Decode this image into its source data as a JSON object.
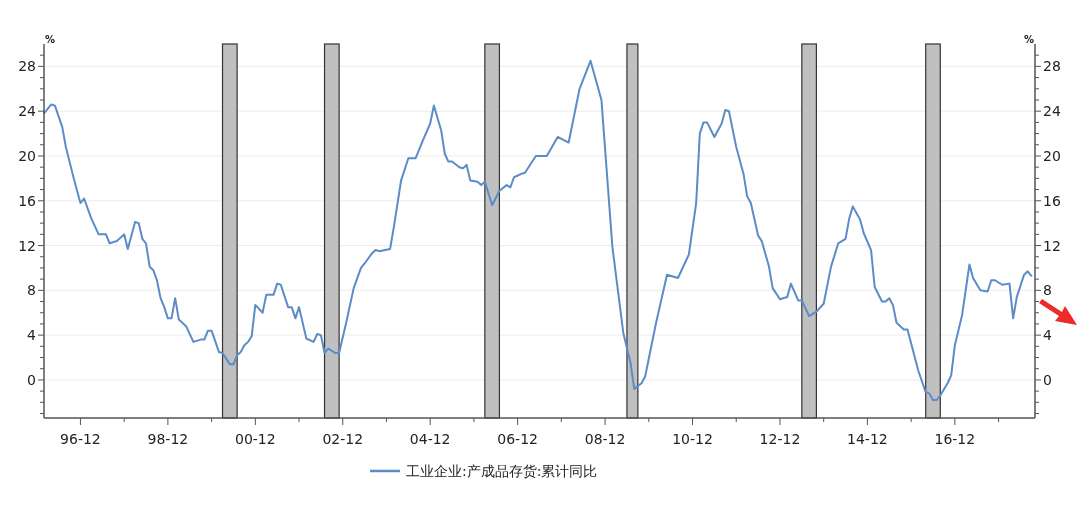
{
  "chart_data": {
    "type": "line",
    "x": [
      "1996-02",
      "1996-04",
      "1996-05",
      "1996-07",
      "1996-08",
      "1996-10",
      "1996-12",
      "1997-01",
      "1997-03",
      "1997-05",
      "1997-07",
      "1997-08",
      "1997-10",
      "1997-12",
      "1998-01",
      "1998-03",
      "1998-04",
      "1998-05",
      "1998-06",
      "1998-07",
      "1998-08",
      "1998-09",
      "1998-10",
      "1998-11",
      "1998-12",
      "1999-01",
      "1999-02",
      "1999-03",
      "1999-05",
      "1999-07",
      "1999-09",
      "1999-10",
      "1999-11",
      "1999-12",
      "2000-02",
      "2000-03",
      "2000-05",
      "2000-06",
      "2000-07",
      "2000-08",
      "2000-09",
      "2000-10",
      "2000-11",
      "2000-12",
      "2001-02",
      "2001-03",
      "2001-05",
      "2001-06",
      "2001-07",
      "2001-09",
      "2001-10",
      "2001-11",
      "2001-12",
      "2002-02",
      "2002-04",
      "2002-05",
      "2002-06",
      "2002-07",
      "2002-08",
      "2002-10",
      "2002-11",
      "2003-01",
      "2003-03",
      "2003-05",
      "2003-06",
      "2003-08",
      "2003-09",
      "2003-10",
      "2004-01",
      "2004-02",
      "2004-04",
      "2004-06",
      "2004-08",
      "2004-10",
      "2004-12",
      "2005-01",
      "2005-03",
      "2005-04",
      "2005-05",
      "2005-06",
      "2005-08",
      "2005-09",
      "2005-10",
      "2005-11",
      "2006-01",
      "2006-02",
      "2006-03",
      "2006-05",
      "2006-07",
      "2006-09",
      "2006-10",
      "2006-11",
      "2007-01",
      "2007-02",
      "2007-05",
      "2007-08",
      "2007-11",
      "2008-02",
      "2008-05",
      "2008-08",
      "2008-11",
      "2009-02",
      "2009-05",
      "2009-07",
      "2009-08",
      "2009-10",
      "2009-11",
      "2010-02",
      "2010-05",
      "2010-08",
      "2010-11",
      "2011-01",
      "2011-02",
      "2011-03",
      "2011-04",
      "2011-06",
      "2011-08",
      "2011-09",
      "2011-10",
      "2011-12",
      "2012-02",
      "2012-03",
      "2012-04",
      "2012-06",
      "2012-07",
      "2012-09",
      "2012-10",
      "2012-12",
      "2013-02",
      "2013-03",
      "2013-05",
      "2013-06",
      "2013-08",
      "2013-10",
      "2013-12",
      "2014-02",
      "2014-04",
      "2014-06",
      "2014-07",
      "2014-08",
      "2014-10",
      "2014-11",
      "2015-01",
      "2015-02",
      "2015-04",
      "2015-05",
      "2015-06",
      "2015-07",
      "2015-08",
      "2015-10",
      "2015-11",
      "2016-02",
      "2016-04",
      "2016-05",
      "2016-06",
      "2016-07",
      "2016-08",
      "2016-10",
      "2016-11",
      "2016-12",
      "2017-02",
      "2017-04",
      "2017-05",
      "2017-07",
      "2017-09",
      "2017-10",
      "2017-11",
      "2018-01",
      "2018-03",
      "2018-04",
      "2018-05",
      "2018-07",
      "2018-08",
      "2018-09"
    ],
    "series": [
      {
        "name": "工业企业:产成品存货:累计同比",
        "color": "#5b8cc8",
        "values": [
          23.8,
          24.6,
          24.5,
          22.6,
          20.8,
          18.2,
          15.8,
          16.2,
          14.4,
          13.0,
          13.0,
          12.2,
          12.4,
          13.0,
          11.7,
          14.1,
          14.0,
          12.6,
          12.2,
          10.1,
          9.8,
          8.9,
          7.3,
          6.5,
          5.5,
          5.5,
          7.3,
          5.4,
          4.8,
          3.4,
          3.6,
          3.6,
          4.4,
          4.4,
          2.5,
          2.4,
          1.4,
          1.4,
          2.2,
          2.5,
          3.1,
          3.4,
          3.9,
          6.7,
          6.0,
          7.6,
          7.6,
          8.6,
          8.5,
          6.5,
          6.5,
          5.5,
          6.5,
          3.7,
          3.4,
          4.1,
          4.0,
          2.4,
          2.8,
          2.4,
          2.4,
          5.2,
          8.2,
          10.0,
          10.4,
          11.3,
          11.6,
          11.5,
          11.7,
          13.6,
          17.8,
          19.8,
          19.8,
          21.4,
          22.9,
          24.5,
          22.3,
          20.2,
          19.5,
          19.5,
          19.0,
          18.9,
          19.2,
          17.8,
          17.7,
          17.4,
          17.7,
          15.6,
          16.9,
          17.4,
          17.2,
          18.1,
          18.4,
          18.5,
          20.0,
          20.0,
          21.7,
          21.2,
          26.0,
          28.5,
          25.0,
          11.9,
          4.2,
          1.5,
          -0.8,
          -0.3,
          0.3,
          5.1,
          9.4,
          9.1,
          11.2,
          15.8,
          22.0,
          23.0,
          23.0,
          21.7,
          22.9,
          24.1,
          24.0,
          20.8,
          18.4,
          16.4,
          15.8,
          12.9,
          12.4,
          10.1,
          8.2,
          7.2,
          7.4,
          8.6,
          7.1,
          7.1,
          5.7,
          6.1,
          6.8,
          10.1,
          12.2,
          12.6,
          14.4,
          15.5,
          14.3,
          13.1,
          11.6,
          8.3,
          7.0,
          7.0,
          7.3,
          6.7,
          5.1,
          4.5,
          4.5,
          0.8,
          -1.1,
          -1.2,
          -1.8,
          -1.8,
          -1.4,
          -0.3,
          0.4,
          3.1,
          5.8,
          10.3,
          9.1,
          8.0,
          7.9,
          8.9,
          8.9,
          8.5,
          8.6,
          5.5,
          7.4,
          9.4,
          9.7,
          9.3
        ]
      }
    ],
    "xlim": [
      "1996-02",
      "2018-10"
    ],
    "xticks": [
      {
        "value": "1996-12",
        "label": "96-12"
      },
      {
        "value": "1997-12",
        "label": null
      },
      {
        "value": "1998-12",
        "label": "98-12"
      },
      {
        "value": "1999-12",
        "label": null
      },
      {
        "value": "2000-12",
        "label": "00-12"
      },
      {
        "value": "2001-12",
        "label": null
      },
      {
        "value": "2002-12",
        "label": "02-12"
      },
      {
        "value": "2003-12",
        "label": null
      },
      {
        "value": "2004-12",
        "label": "04-12"
      },
      {
        "value": "2005-12",
        "label": null
      },
      {
        "value": "2006-12",
        "label": "06-12"
      },
      {
        "value": "2007-12",
        "label": null
      },
      {
        "value": "2008-12",
        "label": "08-12"
      },
      {
        "value": "2009-12",
        "label": null
      },
      {
        "value": "2010-12",
        "label": "10-12"
      },
      {
        "value": "2011-12",
        "label": null
      },
      {
        "value": "2012-12",
        "label": "12-12"
      },
      {
        "value": "2013-12",
        "label": null
      },
      {
        "value": "2014-12",
        "label": "14-12"
      },
      {
        "value": "2015-12",
        "label": null
      },
      {
        "value": "2016-12",
        "label": "16-12"
      },
      {
        "value": "2017-12",
        "label": null
      }
    ],
    "ylim": [
      -3.4,
      30
    ],
    "yticks": [
      {
        "value": -3,
        "label": null
      },
      {
        "value": -2,
        "label": null
      },
      {
        "value": -1,
        "label": null
      },
      0,
      {
        "value": 1,
        "label": null
      },
      {
        "value": 2,
        "label": null
      },
      {
        "value": 3,
        "label": null
      },
      4,
      {
        "value": 5,
        "label": null
      },
      {
        "value": 6,
        "label": null
      },
      {
        "value": 7,
        "label": null
      },
      8,
      {
        "value": 9,
        "label": null
      },
      {
        "value": 10,
        "label": null
      },
      {
        "value": 11,
        "label": null
      },
      12,
      {
        "value": 13,
        "label": null
      },
      {
        "value": 14,
        "label": null
      },
      {
        "value": 15,
        "label": null
      },
      16,
      {
        "value": 17,
        "label": null
      },
      {
        "value": 18,
        "label": null
      },
      {
        "value": 19,
        "label": null
      },
      20,
      {
        "value": 21,
        "label": null
      },
      {
        "value": 22,
        "label": null
      },
      {
        "value": 23,
        "label": null
      },
      24,
      {
        "value": 25,
        "label": null
      },
      {
        "value": 26,
        "label": null
      },
      {
        "value": 27,
        "label": null
      },
      28,
      {
        "value": 29,
        "label": null
      }
    ],
    "y2lim": [
      -3.4,
      30
    ],
    "y2ticks": [
      {
        "value": -3,
        "label": null
      },
      {
        "value": -2,
        "label": null
      },
      {
        "value": -1,
        "label": null
      },
      0,
      {
        "value": 1,
        "label": null
      },
      {
        "value": 2,
        "label": null
      },
      {
        "value": 3,
        "label": null
      },
      4,
      {
        "value": 5,
        "label": null
      },
      {
        "value": 6,
        "label": null
      },
      {
        "value": 7,
        "label": null
      },
      8,
      {
        "value": 9,
        "label": null
      },
      {
        "value": 10,
        "label": null
      },
      {
        "value": 11,
        "label": null
      },
      12,
      {
        "value": 13,
        "label": null
      },
      {
        "value": 14,
        "label": null
      },
      {
        "value": 15,
        "label": null
      },
      16,
      {
        "value": 17,
        "label": null
      },
      {
        "value": 18,
        "label": null
      },
      {
        "value": 19,
        "label": null
      },
      20,
      {
        "value": 21,
        "label": null
      },
      {
        "value": 22,
        "label": null
      },
      {
        "value": 23,
        "label": null
      },
      24,
      {
        "value": 25,
        "label": null
      },
      {
        "value": 26,
        "label": null
      },
      {
        "value": 27,
        "label": null
      },
      28,
      {
        "value": 29,
        "label": null
      }
    ],
    "ylabel": "%",
    "y2label": "%",
    "bands": [
      {
        "axis": "x",
        "from": "2000-03",
        "to": "2000-07",
        "color": "#c0c0c0"
      },
      {
        "axis": "x",
        "from": "2002-07",
        "to": "2002-11",
        "color": "#c0c0c0"
      },
      {
        "axis": "x",
        "from": "2006-03",
        "to": "2006-07",
        "color": "#c0c0c0"
      },
      {
        "axis": "x",
        "from": "2009-06",
        "to": "2009-09",
        "color": "#c0c0c0"
      },
      {
        "axis": "x",
        "from": "2013-06",
        "to": "2013-10",
        "color": "#c0c0c0"
      },
      {
        "axis": "x",
        "from": "2016-04",
        "to": "2016-08",
        "color": "#c0c0c0"
      }
    ],
    "grid": "y",
    "legend": "bottom"
  }
}
